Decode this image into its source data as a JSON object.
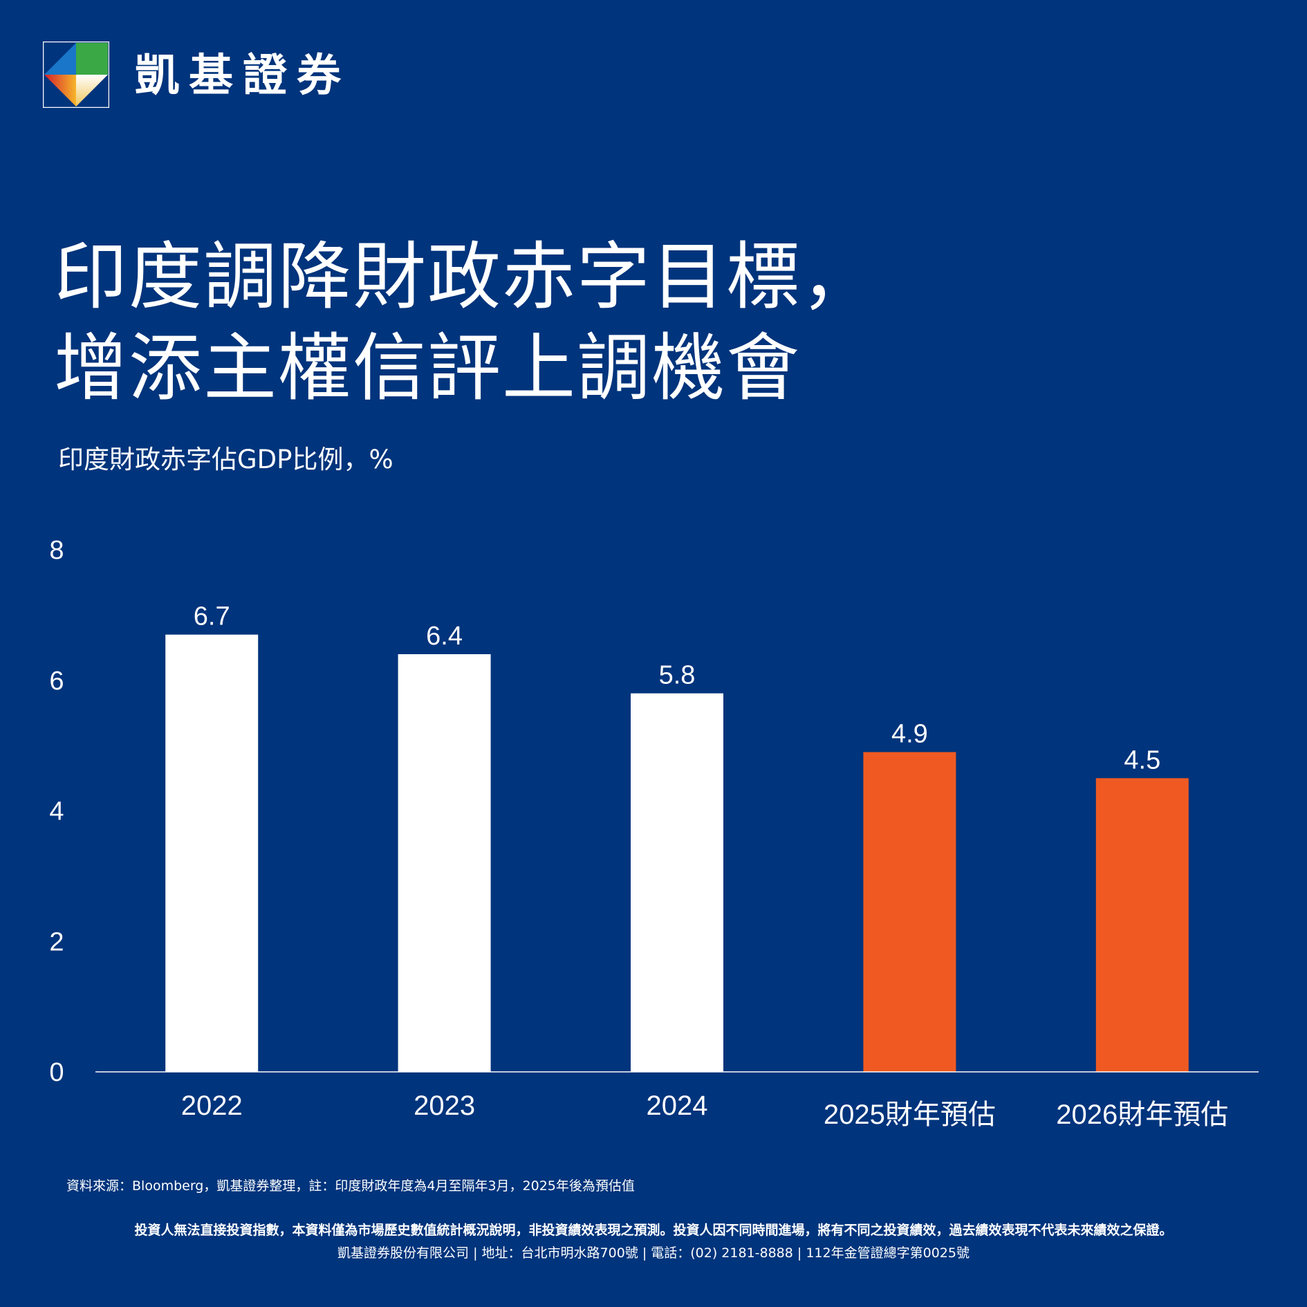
{
  "brand": {
    "name": "凱基證券"
  },
  "title_lines": [
    "印度調降財政赤字目標，",
    "增添主權信評上調機會"
  ],
  "subtitle": "印度財政赤字佔GDP比例，%",
  "colors": {
    "background": "#00347c",
    "actual": "#ffffff",
    "forecast": "#f05a22",
    "axis": "#ffffff"
  },
  "chart_data": {
    "type": "bar",
    "categories": [
      "2022",
      "2023",
      "2024",
      "2025財年預估",
      "2026財年預估"
    ],
    "values": [
      6.7,
      6.4,
      5.8,
      4.9,
      4.5
    ],
    "data_labels": [
      "6.7",
      "6.4",
      "5.8",
      "4.9",
      "4.5"
    ],
    "forecast": [
      false,
      false,
      false,
      true,
      true
    ],
    "ylim": [
      0,
      8
    ],
    "yticks": [
      0,
      2,
      4,
      6,
      8
    ],
    "grid": false,
    "legend": "none"
  },
  "footer": {
    "source": "資料來源：Bloomberg，凱基證券整理，註：印度財政年度為4月至隔年3月，2025年後為預估值",
    "disclaimer": "投資人無法直接投資指數，本資料僅為市場歷史數值統計概況說明，非投資績效表現之預測。投資人因不同時間進場，將有不同之投資績效，過去績效表現不代表未來績效之保證。",
    "company": "凱基證券股份有限公司 | 地址：台北市明水路700號 | 電話：(02) 2181-8888 | 112年金管證總字第0025號"
  }
}
